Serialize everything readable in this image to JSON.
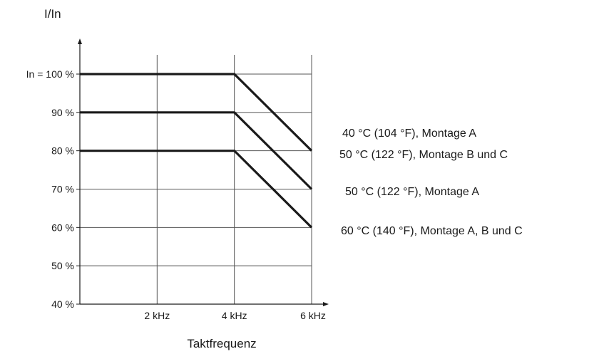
{
  "chart_data": {
    "type": "line",
    "ylabel": "I/In",
    "xlabel": "Taktfrequenz",
    "xlim": [
      0,
      6
    ],
    "ylim": [
      40,
      100
    ],
    "grid": true,
    "x_ticks": [
      {
        "value": 2,
        "label": "2 kHz"
      },
      {
        "value": 4,
        "label": "4 kHz"
      },
      {
        "value": 6,
        "label": "6 kHz"
      }
    ],
    "y_ticks": [
      {
        "value": 100,
        "label": "In = 100 %"
      },
      {
        "value": 90,
        "label": "90 %"
      },
      {
        "value": 80,
        "label": "80 %"
      },
      {
        "value": 70,
        "label": "70 %"
      },
      {
        "value": 60,
        "label": "60 %"
      },
      {
        "value": 50,
        "label": "50 %"
      },
      {
        "value": 40,
        "label": "40 %"
      }
    ],
    "series": [
      {
        "x": [
          0,
          4,
          6
        ],
        "y": [
          100,
          100,
          80
        ],
        "color": "#1a1a1a"
      },
      {
        "x": [
          0,
          4,
          6
        ],
        "y": [
          90,
          90,
          70
        ],
        "color": "#1a1a1a"
      },
      {
        "x": [
          0,
          4,
          6
        ],
        "y": [
          80,
          80,
          60
        ],
        "color": "#1a1a1a"
      }
    ],
    "annotations": [
      "40 °C (104 °F), Montage A",
      "50 °C (122 °F), Montage B und C",
      "50 °C (122 °F), Montage A",
      "60 °C (140 °F), Montage A, B und C"
    ]
  }
}
